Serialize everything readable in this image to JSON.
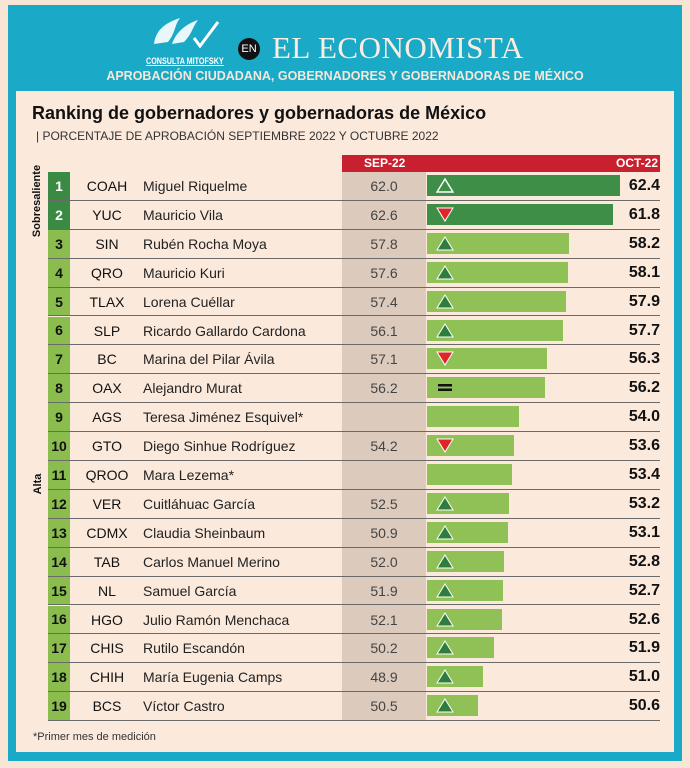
{
  "header": {
    "logo_text": "CONSULTA MITOFSKY",
    "en_badge": "EN",
    "brand": "EL ECONOMISTA",
    "subtitle": "APROBACIÓN CIUDADANA, GOBERNADORES Y GOBERNADORAS DE MÉXICO"
  },
  "title": "Ranking de gobernadores y gobernadoras de México",
  "subhead": "| PORCENTAJE DE APROBACIÓN SEPTIEMBRE 2022 Y OCTUBRE 2022",
  "footnote": "*Primer mes de medición",
  "colors": {
    "frame": "#1ba9c8",
    "header": "#c8202e",
    "top_bar": "#3e8e47",
    "bar": "#8fc156",
    "down": "#e0252a",
    "up": "#2f7d3e"
  },
  "chart_data": {
    "type": "bar",
    "columns": [
      "SEP-22",
      "OCT-22"
    ],
    "categories_groups": [
      {
        "label": "Sobresaliente",
        "ranks": [
          1,
          2
        ]
      },
      {
        "label": "Alta",
        "ranks": [
          3,
          19
        ]
      }
    ],
    "rows": [
      {
        "rank": "1",
        "state": "COAH",
        "name": "Miguel Riquelme",
        "sep": "62.0",
        "oct": 62.4,
        "trend": "up-outline"
      },
      {
        "rank": "2",
        "state": "YUC",
        "name": "Mauricio Vila",
        "sep": "62.6",
        "oct": 61.8,
        "trend": "down"
      },
      {
        "rank": "3",
        "state": "SIN",
        "name": "Rubén Rocha Moya",
        "sep": "57.8",
        "oct": 58.2,
        "trend": "up"
      },
      {
        "rank": "4",
        "state": "QRO",
        "name": "Mauricio Kuri",
        "sep": "57.6",
        "oct": 58.1,
        "trend": "up"
      },
      {
        "rank": "5",
        "state": "TLAX",
        "name": "Lorena Cuéllar",
        "sep": "57.4",
        "oct": 57.9,
        "trend": "up"
      },
      {
        "rank": "6",
        "state": "SLP",
        "name": "Ricardo Gallardo Cardona",
        "sep": "56.1",
        "oct": 57.7,
        "trend": "up"
      },
      {
        "rank": "7",
        "state": "BC",
        "name": "Marina del Pilar Ávila",
        "sep": "57.1",
        "oct": 56.3,
        "trend": "down"
      },
      {
        "rank": "8",
        "state": "OAX",
        "name": "Alejandro Murat",
        "sep": "56.2",
        "oct": 56.2,
        "trend": "equal"
      },
      {
        "rank": "9",
        "state": "AGS",
        "name": "Teresa Jiménez Esquivel*",
        "sep": "",
        "oct": 54.0,
        "trend": "none"
      },
      {
        "rank": "10",
        "state": "GTO",
        "name": "Diego Sinhue Rodríguez",
        "sep": "54.2",
        "oct": 53.6,
        "trend": "down"
      },
      {
        "rank": "11",
        "state": "QROO",
        "name": "Mara Lezema*",
        "sep": "",
        "oct": 53.4,
        "trend": "none"
      },
      {
        "rank": "12",
        "state": "VER",
        "name": "Cuitláhuac García",
        "sep": "52.5",
        "oct": 53.2,
        "trend": "up"
      },
      {
        "rank": "13",
        "state": "CDMX",
        "name": "Claudia Sheinbaum",
        "sep": "50.9",
        "oct": 53.1,
        "trend": "up"
      },
      {
        "rank": "14",
        "state": "TAB",
        "name": "Carlos Manuel Merino",
        "sep": "52.0",
        "oct": 52.8,
        "trend": "up"
      },
      {
        "rank": "15",
        "state": "NL",
        "name": "Samuel García",
        "sep": "51.9",
        "oct": 52.7,
        "trend": "up"
      },
      {
        "rank": "16",
        "state": "HGO",
        "name": "Julio Ramón Menchaca",
        "sep": "52.1",
        "oct": 52.6,
        "trend": "up"
      },
      {
        "rank": "17",
        "state": "CHIS",
        "name": "Rutilo Escandón",
        "sep": "50.2",
        "oct": 51.9,
        "trend": "up"
      },
      {
        "rank": "18",
        "state": "CHIH",
        "name": "María Eugenia Camps",
        "sep": "48.9",
        "oct": 51.0,
        "trend": "up"
      },
      {
        "rank": "19",
        "state": "BCS",
        "name": "Víctor Castro",
        "sep": "50.5",
        "oct": 50.6,
        "trend": "up"
      }
    ]
  }
}
